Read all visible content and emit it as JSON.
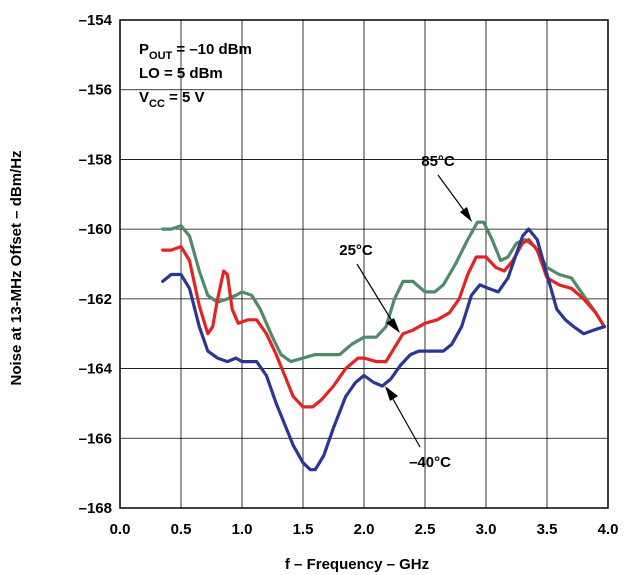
{
  "chart_data": {
    "type": "line",
    "title": "",
    "xlabel": "f – Frequency – GHz",
    "ylabel": "Noise at 13-MHz Offset – dBm/Hz",
    "xlim": [
      0.0,
      4.0
    ],
    "ylim": [
      -168,
      -154
    ],
    "x_ticks": [
      "0.0",
      "0.5",
      "1.0",
      "1.5",
      "2.0",
      "2.5",
      "3.0",
      "3.5",
      "4.0"
    ],
    "y_ticks": [
      "–154",
      "–156",
      "–158",
      "–160",
      "–162",
      "–164",
      "–166",
      "–168"
    ],
    "grid": true,
    "conditions": [
      {
        "main": "P",
        "sub": "OUT",
        "rest": " = –10 dBm"
      },
      {
        "main": "LO = 5 dBm",
        "sub": "",
        "rest": ""
      },
      {
        "main": "V",
        "sub": "CC",
        "rest": " = 5 V"
      }
    ],
    "series": [
      {
        "name": "85°C",
        "color": "#4f8a6a",
        "points": [
          [
            0.35,
            -160.0
          ],
          [
            0.42,
            -160.0
          ],
          [
            0.5,
            -159.9
          ],
          [
            0.57,
            -160.2
          ],
          [
            0.65,
            -161.2
          ],
          [
            0.72,
            -161.9
          ],
          [
            0.8,
            -162.1
          ],
          [
            0.88,
            -162.0
          ],
          [
            0.95,
            -161.9
          ],
          [
            1.0,
            -161.8
          ],
          [
            1.08,
            -161.9
          ],
          [
            1.15,
            -162.3
          ],
          [
            1.25,
            -163.1
          ],
          [
            1.32,
            -163.6
          ],
          [
            1.4,
            -163.8
          ],
          [
            1.5,
            -163.7
          ],
          [
            1.6,
            -163.6
          ],
          [
            1.7,
            -163.6
          ],
          [
            1.8,
            -163.6
          ],
          [
            1.9,
            -163.3
          ],
          [
            2.0,
            -163.1
          ],
          [
            2.1,
            -163.1
          ],
          [
            2.18,
            -162.8
          ],
          [
            2.25,
            -162.0
          ],
          [
            2.32,
            -161.5
          ],
          [
            2.4,
            -161.5
          ],
          [
            2.5,
            -161.8
          ],
          [
            2.58,
            -161.8
          ],
          [
            2.65,
            -161.6
          ],
          [
            2.75,
            -161.0
          ],
          [
            2.85,
            -160.3
          ],
          [
            2.93,
            -159.8
          ],
          [
            2.98,
            -159.8
          ],
          [
            3.05,
            -160.3
          ],
          [
            3.12,
            -160.9
          ],
          [
            3.18,
            -160.8
          ],
          [
            3.25,
            -160.4
          ],
          [
            3.32,
            -160.3
          ],
          [
            3.4,
            -160.5
          ],
          [
            3.5,
            -161.1
          ],
          [
            3.6,
            -161.3
          ],
          [
            3.7,
            -161.4
          ],
          [
            3.8,
            -161.9
          ],
          [
            3.9,
            -162.4
          ],
          [
            3.97,
            -162.8
          ]
        ]
      },
      {
        "name": "25°C",
        "color": "#e52421",
        "points": [
          [
            0.35,
            -160.6
          ],
          [
            0.42,
            -160.6
          ],
          [
            0.5,
            -160.5
          ],
          [
            0.57,
            -160.9
          ],
          [
            0.65,
            -162.2
          ],
          [
            0.72,
            -163.0
          ],
          [
            0.76,
            -162.8
          ],
          [
            0.8,
            -162.0
          ],
          [
            0.85,
            -161.2
          ],
          [
            0.88,
            -161.3
          ],
          [
            0.92,
            -162.3
          ],
          [
            0.97,
            -162.7
          ],
          [
            1.05,
            -162.6
          ],
          [
            1.12,
            -162.6
          ],
          [
            1.2,
            -163.0
          ],
          [
            1.28,
            -163.6
          ],
          [
            1.35,
            -164.2
          ],
          [
            1.42,
            -164.8
          ],
          [
            1.5,
            -165.1
          ],
          [
            1.58,
            -165.1
          ],
          [
            1.65,
            -164.9
          ],
          [
            1.75,
            -164.5
          ],
          [
            1.85,
            -164.0
          ],
          [
            1.95,
            -163.7
          ],
          [
            2.0,
            -163.7
          ],
          [
            2.1,
            -163.8
          ],
          [
            2.18,
            -163.8
          ],
          [
            2.25,
            -163.4
          ],
          [
            2.32,
            -163.0
          ],
          [
            2.4,
            -162.9
          ],
          [
            2.5,
            -162.7
          ],
          [
            2.6,
            -162.6
          ],
          [
            2.7,
            -162.4
          ],
          [
            2.78,
            -162.0
          ],
          [
            2.85,
            -161.3
          ],
          [
            2.92,
            -160.8
          ],
          [
            3.0,
            -160.8
          ],
          [
            3.08,
            -161.1
          ],
          [
            3.15,
            -161.2
          ],
          [
            3.22,
            -160.9
          ],
          [
            3.3,
            -160.4
          ],
          [
            3.35,
            -160.3
          ],
          [
            3.42,
            -160.6
          ],
          [
            3.5,
            -161.4
          ],
          [
            3.6,
            -161.6
          ],
          [
            3.7,
            -161.7
          ],
          [
            3.8,
            -162.0
          ],
          [
            3.9,
            -162.4
          ],
          [
            3.97,
            -162.8
          ]
        ]
      },
      {
        "name": "–40°C",
        "color": "#2b3694",
        "points": [
          [
            0.35,
            -161.5
          ],
          [
            0.42,
            -161.3
          ],
          [
            0.5,
            -161.3
          ],
          [
            0.57,
            -161.7
          ],
          [
            0.65,
            -162.8
          ],
          [
            0.72,
            -163.5
          ],
          [
            0.8,
            -163.7
          ],
          [
            0.88,
            -163.8
          ],
          [
            0.95,
            -163.7
          ],
          [
            1.0,
            -163.8
          ],
          [
            1.12,
            -163.8
          ],
          [
            1.2,
            -164.2
          ],
          [
            1.28,
            -165.0
          ],
          [
            1.35,
            -165.6
          ],
          [
            1.42,
            -166.2
          ],
          [
            1.5,
            -166.7
          ],
          [
            1.56,
            -166.9
          ],
          [
            1.6,
            -166.9
          ],
          [
            1.67,
            -166.5
          ],
          [
            1.75,
            -165.7
          ],
          [
            1.85,
            -164.8
          ],
          [
            1.93,
            -164.4
          ],
          [
            2.0,
            -164.2
          ],
          [
            2.08,
            -164.4
          ],
          [
            2.15,
            -164.5
          ],
          [
            2.22,
            -164.3
          ],
          [
            2.3,
            -163.9
          ],
          [
            2.38,
            -163.6
          ],
          [
            2.45,
            -163.5
          ],
          [
            2.55,
            -163.5
          ],
          [
            2.65,
            -163.5
          ],
          [
            2.72,
            -163.3
          ],
          [
            2.8,
            -162.8
          ],
          [
            2.88,
            -161.9
          ],
          [
            2.95,
            -161.6
          ],
          [
            3.02,
            -161.7
          ],
          [
            3.1,
            -161.8
          ],
          [
            3.18,
            -161.4
          ],
          [
            3.25,
            -160.7
          ],
          [
            3.3,
            -160.2
          ],
          [
            3.35,
            -160.0
          ],
          [
            3.42,
            -160.3
          ],
          [
            3.5,
            -161.3
          ],
          [
            3.58,
            -162.3
          ],
          [
            3.65,
            -162.6
          ],
          [
            3.72,
            -162.8
          ],
          [
            3.8,
            -163.0
          ],
          [
            3.88,
            -162.9
          ],
          [
            3.97,
            -162.8
          ]
        ]
      }
    ]
  }
}
